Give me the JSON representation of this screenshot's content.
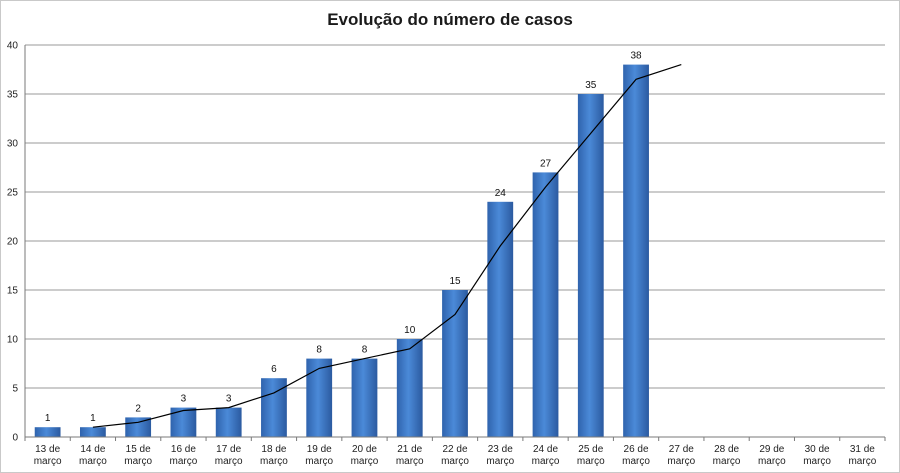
{
  "chart_data": {
    "type": "bar",
    "title": "Evolução do número de casos",
    "categories": [
      [
        "13 de",
        "março"
      ],
      [
        "14 de",
        "março"
      ],
      [
        "15 de",
        "março"
      ],
      [
        "16 de",
        "março"
      ],
      [
        "17 de",
        "março"
      ],
      [
        "18 de",
        "março"
      ],
      [
        "19 de",
        "março"
      ],
      [
        "20 de",
        "março"
      ],
      [
        "21 de",
        "março"
      ],
      [
        "22 de",
        "março"
      ],
      [
        "23 de",
        "março"
      ],
      [
        "24 de",
        "março"
      ],
      [
        "25 de",
        "março"
      ],
      [
        "26 de",
        "março"
      ],
      [
        "27 de",
        "março"
      ],
      [
        "28 de",
        "março"
      ],
      [
        "29 de",
        "março"
      ],
      [
        "30 de",
        "março"
      ],
      [
        "31 de",
        "março"
      ]
    ],
    "series": [
      {
        "type": "bar",
        "color": "#3f7fcf",
        "values": [
          1,
          1,
          2,
          3,
          3,
          6,
          8,
          8,
          10,
          15,
          24,
          27,
          35,
          38,
          null,
          null,
          null,
          null,
          null
        ]
      },
      {
        "type": "line",
        "color": "#000000",
        "values": [
          null,
          1,
          1.5,
          2.7,
          3,
          4.5,
          7,
          8,
          9,
          12.5,
          19.5,
          25.5,
          31,
          36.5,
          38,
          null,
          null,
          null,
          null
        ]
      }
    ],
    "ylim": [
      0,
      40
    ],
    "yticks": [
      0,
      5,
      10,
      15,
      20,
      25,
      30,
      35,
      40
    ],
    "grid": true,
    "legend": "none"
  }
}
